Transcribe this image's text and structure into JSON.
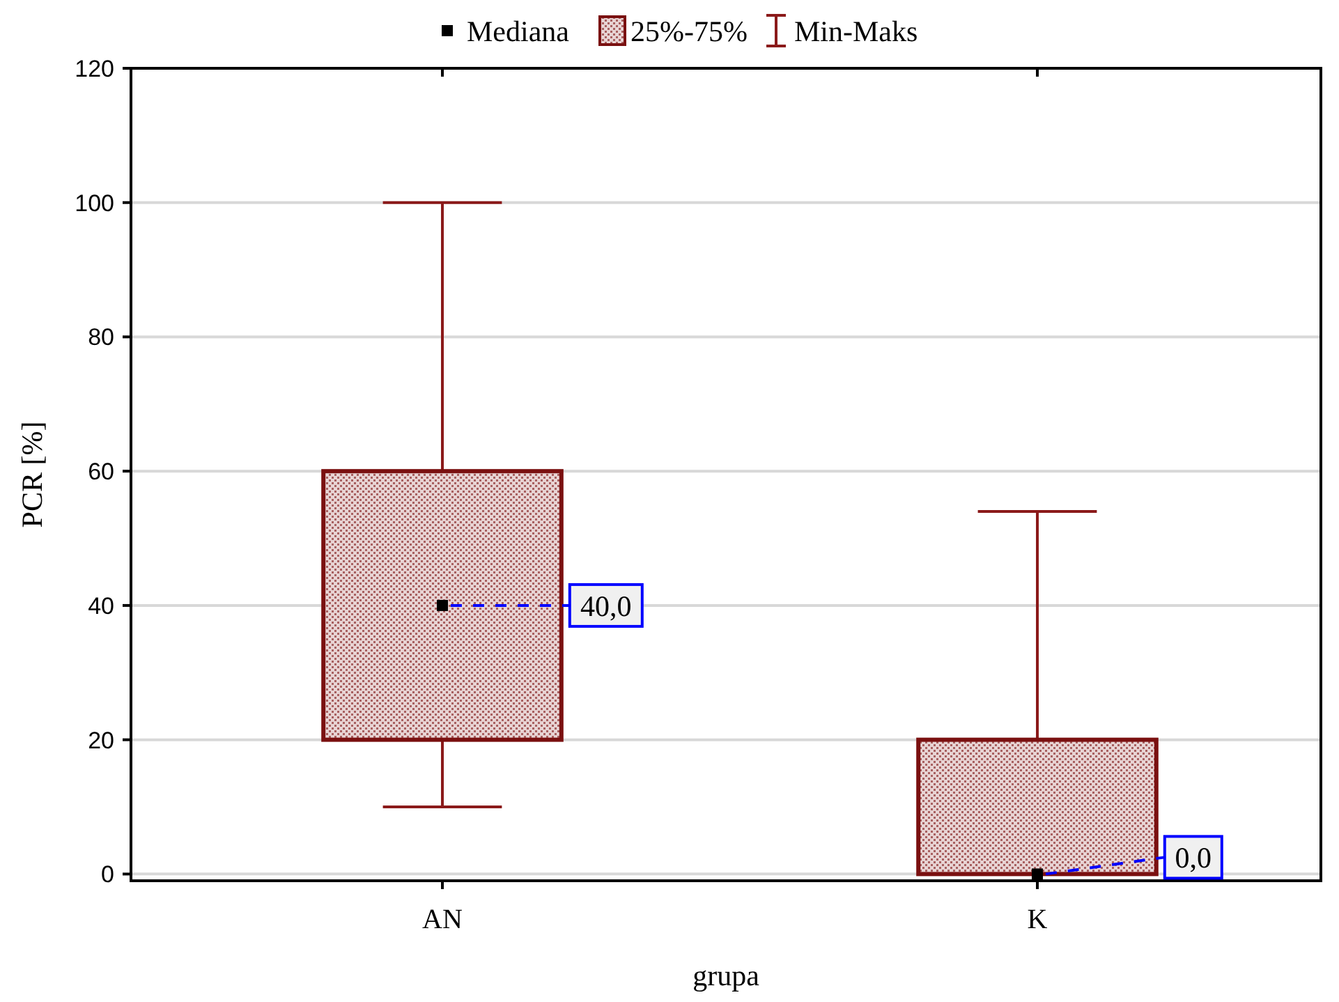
{
  "chart_data": {
    "type": "box",
    "categories": [
      "AN",
      "K"
    ],
    "xlabel": "grupa",
    "ylabel": "PCR [%]",
    "ylim": [
      -1,
      120
    ],
    "yticks": [
      0,
      20,
      40,
      60,
      80,
      100,
      120
    ],
    "grid": "y",
    "legend": "top",
    "marker": "square",
    "series": [
      {
        "name": "25%-75%",
        "color": "#7a1010",
        "boxes": [
          {
            "low": 10,
            "q1": 20,
            "median": 40,
            "q3": 60,
            "high": 100
          },
          {
            "low": 0,
            "q1": 0,
            "median": 0,
            "q3": 20,
            "high": 54
          }
        ]
      }
    ],
    "annotations": [
      "Mediana",
      "Min-Maks",
      {
        "text": "40,0",
        "x": "AN",
        "y": 40
      },
      {
        "text": "0,0",
        "x": "K",
        "y": 0
      }
    ]
  }
}
